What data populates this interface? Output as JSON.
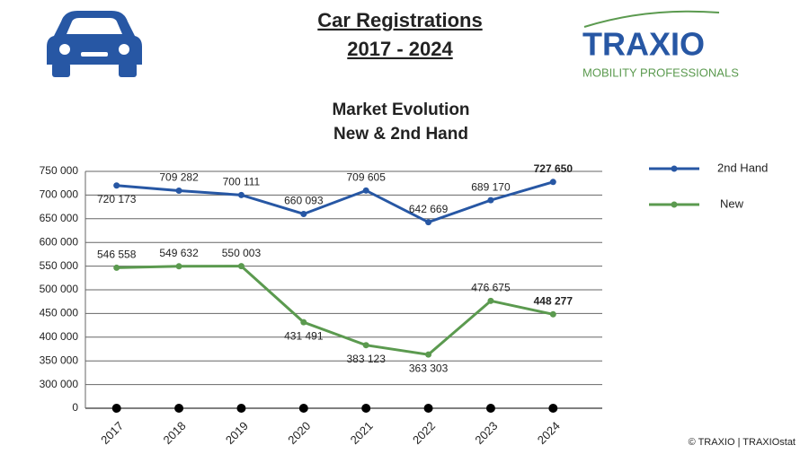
{
  "header": {
    "title_line1": "Car Registrations",
    "title_line2": "2017 - 2024",
    "logo_name": "TRAXIO",
    "logo_tagline": "MOBILITY PROFESSIONALS"
  },
  "chart_data": {
    "type": "line",
    "title_line1": "Market Evolution",
    "title_line2": "New & 2nd Hand",
    "categories": [
      "2017",
      "2018",
      "2019",
      "2020",
      "2021",
      "2022",
      "2023",
      "2024"
    ],
    "series": [
      {
        "name": "2nd Hand",
        "color": "#2757a4",
        "values": [
          720173,
          709282,
          700111,
          660093,
          709605,
          642669,
          689170,
          727650
        ],
        "value_labels": [
          "720 173",
          "709 282",
          "700 111",
          "660 093",
          "709 605",
          "642 669",
          "689 170",
          "727 650"
        ]
      },
      {
        "name": "New",
        "color": "#5b9a4f",
        "values": [
          546558,
          549632,
          550003,
          431491,
          383123,
          363303,
          476675,
          448277
        ],
        "value_labels": [
          "546 558",
          "549 632",
          "550 003",
          "431 491",
          "383 123",
          "363 303",
          "476 675",
          "448 277"
        ]
      }
    ],
    "ylim": [
      0,
      750000
    ],
    "y_break": [
      0,
      300000
    ],
    "yticks": [
      {
        "value": 0,
        "label": "0"
      },
      {
        "value": 300000,
        "label": "300 000"
      },
      {
        "value": 350000,
        "label": "350 000"
      },
      {
        "value": 400000,
        "label": "400 000"
      },
      {
        "value": 450000,
        "label": "450 000"
      },
      {
        "value": 500000,
        "label": "500 000"
      },
      {
        "value": 550000,
        "label": "550 000"
      },
      {
        "value": 600000,
        "label": "600 000"
      },
      {
        "value": 650000,
        "label": "650 000"
      },
      {
        "value": 700000,
        "label": "700 000"
      },
      {
        "value": 750000,
        "label": "750 000"
      }
    ],
    "grid": true,
    "legend": "right"
  },
  "footer": {
    "copyright": "© TRAXIO | TRAXIOstat"
  }
}
